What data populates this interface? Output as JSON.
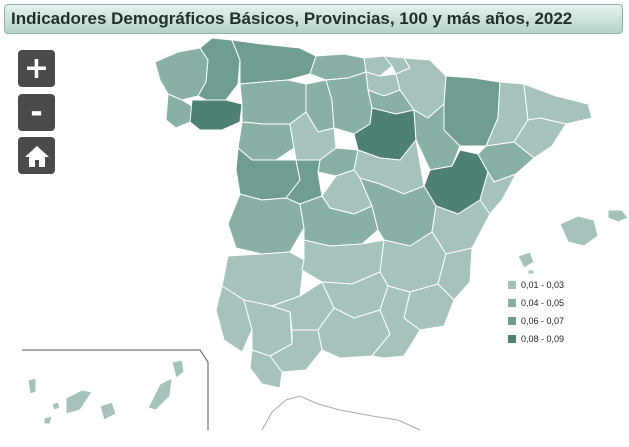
{
  "title": "Indicadores Demográficos Básicos, Provincias, 100 y más años, 2022",
  "controls": {
    "zoom_in": "+",
    "zoom_out": "-",
    "home_icon": "home-icon"
  },
  "colors": {
    "c1": "#a5c3bc",
    "c2": "#89b0a6",
    "c3": "#6f9d92",
    "c4": "#4e8074",
    "outline": "#ffffff",
    "title_bg": "#c8e0da"
  },
  "legend": [
    {
      "label": "0,01 - 0,03",
      "color": "#a5c3bc"
    },
    {
      "label": "0,04 - 0,05",
      "color": "#89b0a6"
    },
    {
      "label": "0,06 - 0,07",
      "color": "#6f9d92"
    },
    {
      "label": "0,08 - 0,09",
      "color": "#4e8074"
    }
  ]
}
